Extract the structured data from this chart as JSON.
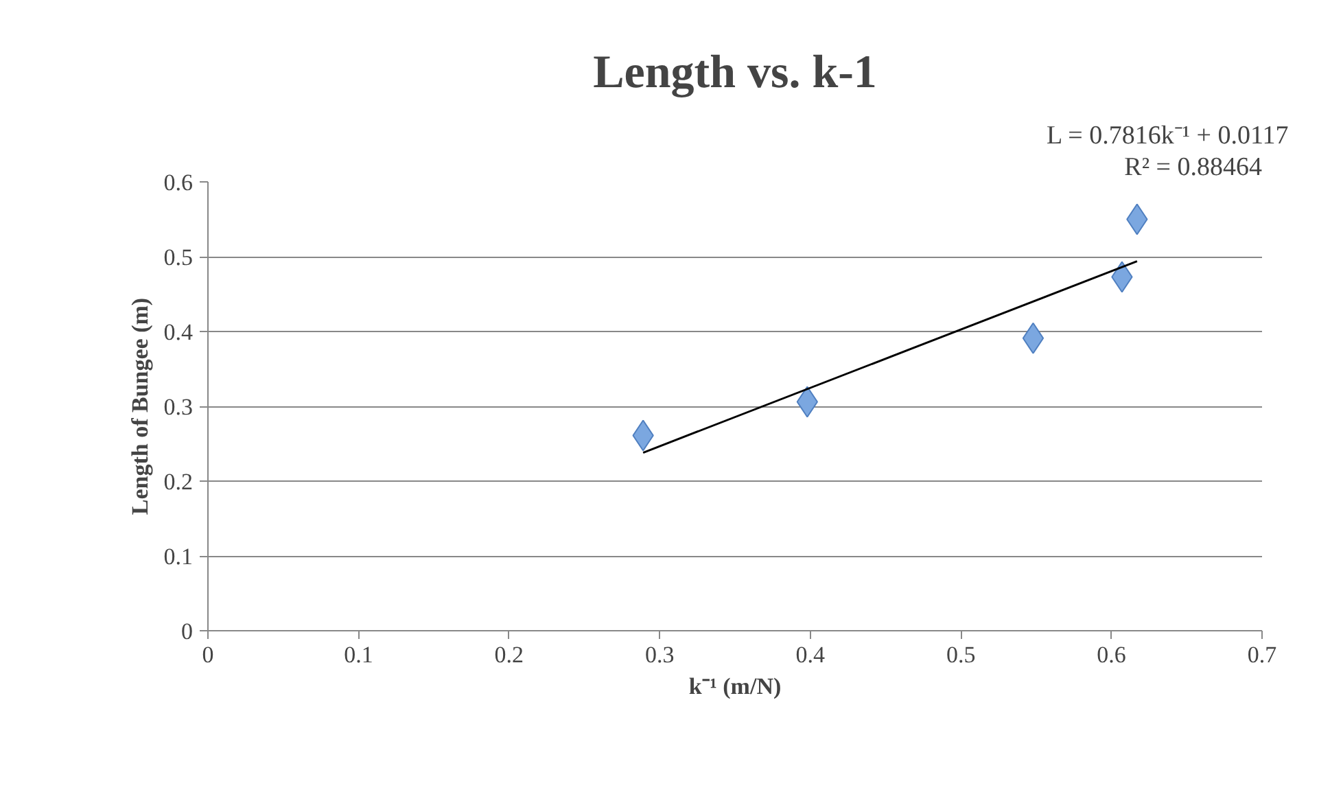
{
  "chart_data": {
    "type": "scatter",
    "title": "Length vs. k-1",
    "xlabel": "k⁻¹ (m/N)",
    "ylabel": "Length of Bungee (m)",
    "annotations": [
      "L = 0.7816k⁻¹ + 0.0117",
      "R² = 0.88464"
    ],
    "x": [
      0.289,
      0.398,
      0.548,
      0.607,
      0.617
    ],
    "series": [
      {
        "color": "#7ba7e0",
        "values": [
          0.261,
          0.306,
          0.391,
          0.473,
          0.55
        ],
        "marker": "diamond"
      },
      {
        "type": "line",
        "color": "#000000",
        "x": [
          0.289,
          0.617
        ],
        "values": [
          0.238,
          0.494
        ],
        "marker": "none",
        "line_style": "solid"
      }
    ],
    "xlim": [
      0,
      0.7
    ],
    "xticks": [
      0,
      0.1,
      0.2,
      0.3,
      0.4,
      0.5,
      0.6,
      0.7
    ],
    "ylim": [
      0,
      0.6
    ],
    "yticks": [
      0,
      0.1,
      0.2,
      0.3,
      0.4,
      0.5,
      0.6
    ],
    "grid": "y"
  }
}
